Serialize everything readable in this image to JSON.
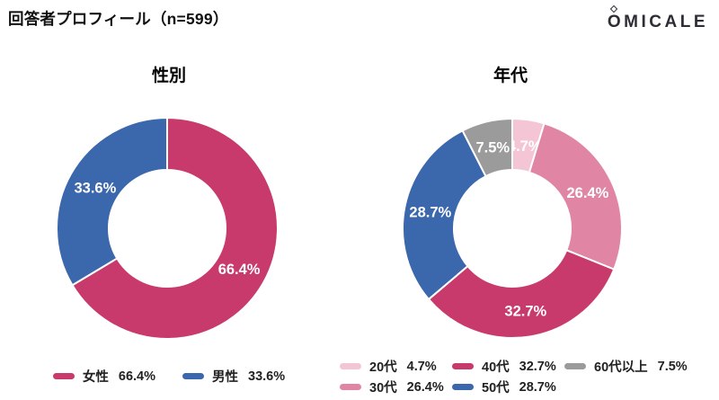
{
  "header": {
    "title": "回答者プロフィール（n=599）",
    "logo": "OMICALE"
  },
  "chart_data": [
    {
      "type": "pie",
      "subtype": "donut",
      "title": "性別",
      "categories": [
        "女性",
        "男性"
      ],
      "values": [
        66.4,
        33.6
      ],
      "slice_labels": [
        "66.4%",
        "33.6%"
      ],
      "colors": [
        "#C83A6B",
        "#3B67AD"
      ],
      "label_color": "#ffffff",
      "start_angle_deg": 0,
      "direction": "clockwise",
      "legend_position": "bottom",
      "legend": [
        {
          "label": "女性",
          "value": "66.4%",
          "color": "#C83A6B"
        },
        {
          "label": "男性",
          "value": "33.6%",
          "color": "#3B67AD"
        }
      ]
    },
    {
      "type": "pie",
      "subtype": "donut",
      "title": "年代",
      "categories": [
        "20代",
        "30代",
        "40代",
        "50代",
        "60代以上"
      ],
      "values": [
        4.7,
        26.4,
        32.7,
        28.7,
        7.5
      ],
      "slice_labels": [
        "4.7%",
        "26.4%",
        "32.7%",
        "28.7%",
        "7.5%"
      ],
      "colors": [
        "#F4C6D5",
        "#E086A4",
        "#C83A6B",
        "#3B67AD",
        "#9B9B9B"
      ],
      "label_color": "#ffffff",
      "start_angle_deg": 0,
      "direction": "clockwise",
      "legend_position": "bottom",
      "legend": [
        {
          "label": "20代",
          "value": "4.7%",
          "color": "#F4C6D5"
        },
        {
          "label": "30代",
          "value": "26.4%",
          "color": "#E086A4"
        },
        {
          "label": "40代",
          "value": "32.7%",
          "color": "#C83A6B"
        },
        {
          "label": "50代",
          "value": "28.7%",
          "color": "#3B67AD"
        },
        {
          "label": "60代以上",
          "value": "7.5%",
          "color": "#9B9B9B"
        }
      ]
    }
  ]
}
